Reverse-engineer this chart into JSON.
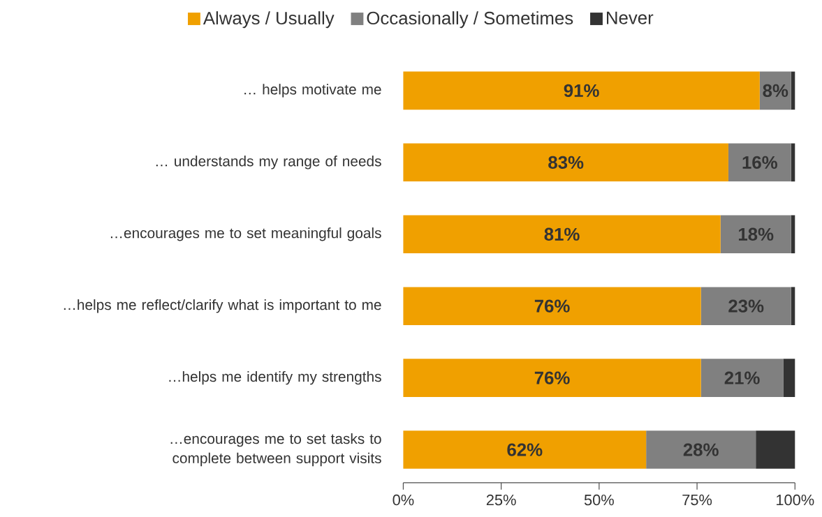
{
  "chart_data": {
    "type": "bar",
    "orientation": "horizontal",
    "stacked": true,
    "categories": [
      "… helps motivate me",
      "… understands my range of needs",
      "…encourages me to set meaningful goals",
      "…helps me reflect/clarify what is important to me",
      "…helps me identify my strengths",
      "…encourages me to set tasks to complete between support visits"
    ],
    "series": [
      {
        "name": "Always / Usually",
        "color": "#f0a000",
        "values": [
          91,
          83,
          81,
          76,
          76,
          62
        ],
        "value_labels": [
          "91%",
          "83%",
          "81%",
          "76%",
          "76%",
          "62%"
        ]
      },
      {
        "name": "Occasionally / Sometimes",
        "color": "#808080",
        "values": [
          8,
          16,
          18,
          23,
          21,
          28
        ],
        "value_labels": [
          "8%",
          "16%",
          "18%",
          "23%",
          "21%",
          "28%"
        ]
      },
      {
        "name": "Never",
        "color": "#333333",
        "values": [
          1,
          1,
          1,
          1,
          3,
          10
        ]
      }
    ],
    "xlim": [
      0,
      100
    ],
    "xticks": [
      {
        "value": 0,
        "label": "0%"
      },
      {
        "value": 25,
        "label": "25%"
      },
      {
        "value": 50,
        "label": "50%"
      },
      {
        "value": 75,
        "label": "75%"
      },
      {
        "value": 100,
        "label": "100%"
      }
    ],
    "legend": "top"
  }
}
